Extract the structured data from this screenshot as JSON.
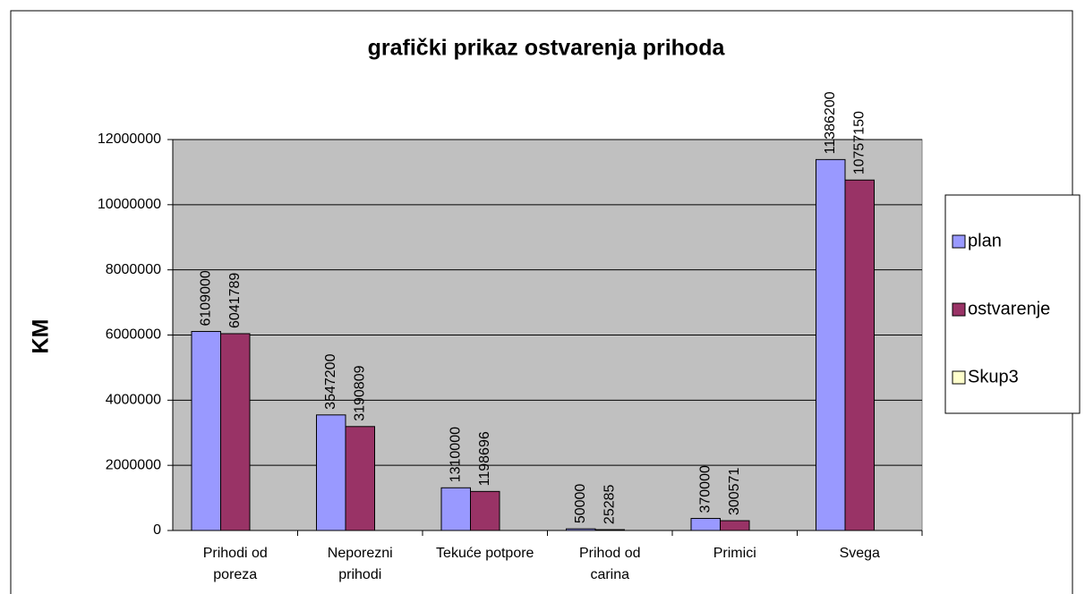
{
  "chart_data": {
    "type": "bar",
    "title": "grafički prikaz ostvarenja prihoda",
    "y_label": "KM",
    "categories": [
      "Prihodi od poreza",
      "Neporezni prihodi",
      "Tekuće potpore",
      "Prihod od carina",
      "Primici",
      "Svega"
    ],
    "series": [
      {
        "name": "plan",
        "color": "#9999ff",
        "values": [
          6109000,
          3547200,
          1310000,
          50000,
          370000,
          11386200
        ]
      },
      {
        "name": "ostvarenje",
        "color": "#993366",
        "values": [
          6041789,
          3190809,
          1198696,
          25285,
          300571,
          10757150
        ]
      },
      {
        "name": "Skup3",
        "color": "#ffffcc",
        "values": [
          null,
          null,
          null,
          null,
          null,
          null
        ]
      }
    ],
    "ylim": [
      0,
      12000000
    ],
    "yticks": [
      0,
      2000000,
      4000000,
      6000000,
      8000000,
      10000000,
      12000000
    ],
    "grid": true,
    "legend": "right",
    "plot_background": "#c0c0c0"
  }
}
